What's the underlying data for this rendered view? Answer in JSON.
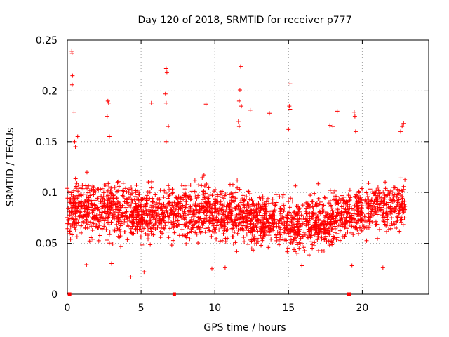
{
  "chart_data": {
    "type": "scatter",
    "title": "Day 120 of 2018, SRMTID for receiver p777",
    "xlabel": "GPS time / hours",
    "ylabel": "SRMTID / TECUs",
    "xlim": [
      0,
      24.5
    ],
    "ylim": [
      0,
      0.25
    ],
    "xticks": [
      0,
      5,
      10,
      15,
      20
    ],
    "xtick_labels": [
      "0",
      "5",
      "10",
      "15",
      "20"
    ],
    "yticks": [
      0,
      0.05,
      0.1,
      0.15,
      0.2,
      0.25
    ],
    "ytick_labels": [
      "0",
      "0.05",
      "0.1",
      "0.15",
      "0.2",
      "0.25"
    ],
    "grid": true,
    "marker": "+",
    "color": "#ff0000",
    "series": [
      {
        "name": "SRMTID",
        "points": [
          [
            0.3,
            0.239
          ],
          [
            0.32,
            0.237
          ],
          [
            0.35,
            0.215
          ],
          [
            0.33,
            0.206
          ],
          [
            0.45,
            0.179
          ],
          [
            0.5,
            0.15
          ],
          [
            0.7,
            0.155
          ],
          [
            0.55,
            0.145
          ],
          [
            2.75,
            0.19
          ],
          [
            2.8,
            0.188
          ],
          [
            2.7,
            0.175
          ],
          [
            2.85,
            0.155
          ],
          [
            5.7,
            0.188
          ],
          [
            6.7,
            0.222
          ],
          [
            6.75,
            0.218
          ],
          [
            6.65,
            0.197
          ],
          [
            6.7,
            0.188
          ],
          [
            6.85,
            0.165
          ],
          [
            6.7,
            0.15
          ],
          [
            9.4,
            0.187
          ],
          [
            11.75,
            0.224
          ],
          [
            11.7,
            0.201
          ],
          [
            11.65,
            0.19
          ],
          [
            11.8,
            0.185
          ],
          [
            11.6,
            0.17
          ],
          [
            11.65,
            0.165
          ],
          [
            12.4,
            0.181
          ],
          [
            13.7,
            0.178
          ],
          [
            15.1,
            0.207
          ],
          [
            15.05,
            0.185
          ],
          [
            15.1,
            0.182
          ],
          [
            15.0,
            0.162
          ],
          [
            17.8,
            0.166
          ],
          [
            18.0,
            0.165
          ],
          [
            18.3,
            0.18
          ],
          [
            19.45,
            0.179
          ],
          [
            19.5,
            0.175
          ],
          [
            19.55,
            0.16
          ],
          [
            22.8,
            0.168
          ],
          [
            22.7,
            0.165
          ],
          [
            22.6,
            0.16
          ],
          [
            4.3,
            0.017
          ],
          [
            5.2,
            0.022
          ],
          [
            9.8,
            0.025
          ],
          [
            10.7,
            0.026
          ],
          [
            19.3,
            0.028
          ],
          [
            21.4,
            0.026
          ],
          [
            1.3,
            0.029
          ],
          [
            3.0,
            0.03
          ],
          [
            15.9,
            0.028
          ]
        ]
      }
    ],
    "x_axis_markers": [
      0.15,
      7.25,
      19.1
    ]
  }
}
